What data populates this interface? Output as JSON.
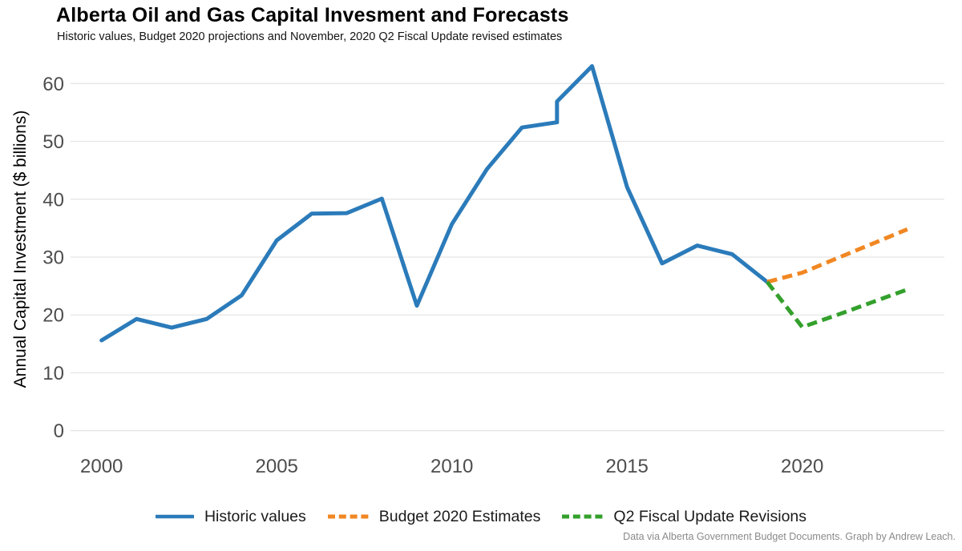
{
  "header": {
    "title": "Alberta Oil and Gas Capital Invesment and Forecasts",
    "subtitle": "Historic values, Budget 2020 projections and November, 2020 Q2 Fiscal Update revised estimates"
  },
  "caption": "Data via Alberta Government Budget Documents. Graph by Andrew Leach.",
  "colors": {
    "historic": "#2b7bba",
    "budget2020": "#f18722",
    "q2revision": "#33a02c",
    "gridline": "#e5e5e5",
    "tick_label": "#4d4d4d",
    "axis_title": "#000000"
  },
  "chart_data": {
    "type": "line",
    "title": "Alberta Oil and Gas Capital Invesment and Forecasts",
    "subtitle": "Historic values, Budget 2020 projections and November, 2020 Q2 Fiscal Update revised estimates",
    "xlabel": "",
    "ylabel": "Annual Capital Investment ($ billions)",
    "x_ticks": [
      2000,
      2005,
      2010,
      2015,
      2020
    ],
    "y_ticks": [
      0,
      10,
      20,
      30,
      40,
      50,
      60
    ],
    "xlim": [
      1999.1,
      2023.9
    ],
    "ylim": [
      0,
      64
    ],
    "grid": "horizontal-only",
    "legend_position": "bottom",
    "note": "Historic series has a vertical revision jump at 2013 from 53.3 to 56.9",
    "series": [
      {
        "name": "Historic values",
        "color": "#2b7bba",
        "style": "solid",
        "points": [
          [
            2000,
            15.6
          ],
          [
            2001,
            19.3
          ],
          [
            2002,
            17.8
          ],
          [
            2003,
            19.3
          ],
          [
            2004,
            23.4
          ],
          [
            2005,
            32.9
          ],
          [
            2006,
            37.5
          ],
          [
            2007,
            37.6
          ],
          [
            2008,
            40.1
          ],
          [
            2009,
            21.6
          ],
          [
            2010,
            35.7
          ],
          [
            2011,
            45.2
          ],
          [
            2012,
            52.4
          ],
          [
            2013,
            53.3
          ],
          [
            2013,
            56.9
          ],
          [
            2014,
            63.0
          ],
          [
            2015,
            42.1
          ],
          [
            2016,
            28.9
          ],
          [
            2017,
            32.0
          ],
          [
            2018,
            30.5
          ],
          [
            2019,
            25.7
          ]
        ]
      },
      {
        "name": "Budget 2020 Estimates",
        "color": "#f18722",
        "style": "dashed",
        "points": [
          [
            2019,
            25.7
          ],
          [
            2020,
            27.3
          ],
          [
            2021,
            29.8
          ],
          [
            2022,
            32.3
          ],
          [
            2023,
            34.8
          ]
        ]
      },
      {
        "name": "Q2 Fiscal Update Revisions",
        "color": "#33a02c",
        "style": "dashed",
        "points": [
          [
            2019,
            25.7
          ],
          [
            2020,
            17.9
          ],
          [
            2021,
            20.0
          ],
          [
            2022,
            22.2
          ],
          [
            2023,
            24.4
          ]
        ]
      }
    ]
  }
}
